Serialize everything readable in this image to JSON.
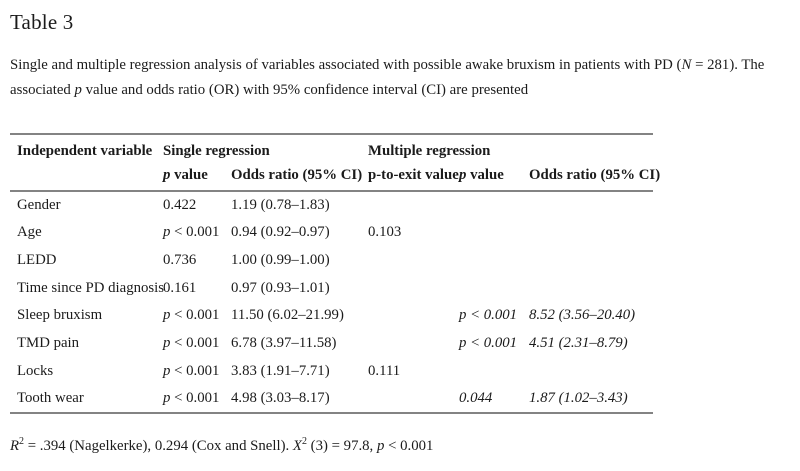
{
  "title": "Table 3",
  "caption": {
    "segments": [
      {
        "t": "Single and multiple regression analysis of variables associated with possible awake bruxism in patients with PD ("
      },
      {
        "t": "N",
        "i": true
      },
      {
        "t": " = 281). The associated "
      },
      {
        "t": "p",
        "i": true
      },
      {
        "t": " value and odds ratio (OR) with 95% confidence interval (CI) are presented"
      }
    ]
  },
  "table": {
    "header": {
      "col_independent": "Independent variable",
      "group_single": "Single regression",
      "group_multiple": "Multiple regression"
    },
    "subheader": [
      {
        "segments": [
          {
            "t": "p",
            "i": true
          },
          {
            "t": " value"
          }
        ]
      },
      {
        "segments": [
          {
            "t": "Odds ratio (95% CI)"
          }
        ]
      },
      {
        "segments": [
          {
            "t": "p-to-exit value"
          }
        ]
      },
      {
        "segments": [
          {
            "t": "p",
            "i": true
          },
          {
            "t": " value"
          }
        ]
      },
      {
        "segments": [
          {
            "t": "Odds ratio (95% CI)"
          }
        ]
      }
    ],
    "rows": [
      {
        "cells": [
          {
            "t": "Gender"
          },
          {
            "t": "0.422"
          },
          {
            "t": "1.19 (0.78–1.83)"
          },
          {
            "t": ""
          },
          {
            "t": ""
          },
          {
            "t": ""
          }
        ]
      },
      {
        "cells": [
          {
            "t": "Age"
          },
          {
            "t": "p < 0.001",
            "s": "pfirst"
          },
          {
            "t": "0.94 (0.92–0.97)"
          },
          {
            "t": "0.103"
          },
          {
            "t": ""
          },
          {
            "t": ""
          }
        ]
      },
      {
        "cells": [
          {
            "t": "LEDD"
          },
          {
            "t": "0.736"
          },
          {
            "t": "1.00 (0.99–1.00)"
          },
          {
            "t": ""
          },
          {
            "t": ""
          },
          {
            "t": ""
          }
        ]
      },
      {
        "cells": [
          {
            "t": "Time since PD diagnosis"
          },
          {
            "t": "0.161"
          },
          {
            "t": "0.97 (0.93–1.01)"
          },
          {
            "t": ""
          },
          {
            "t": ""
          },
          {
            "t": ""
          }
        ]
      },
      {
        "cells": [
          {
            "t": "Sleep bruxism"
          },
          {
            "t": "p < 0.001",
            "s": "pfirst"
          },
          {
            "t": "11.50 (6.02–21.99)"
          },
          {
            "t": ""
          },
          {
            "t": "p < 0.001",
            "s": "italic"
          },
          {
            "t": "8.52 (3.56–20.40)",
            "s": "italic"
          }
        ]
      },
      {
        "cells": [
          {
            "t": "TMD pain"
          },
          {
            "t": "p < 0.001",
            "s": "pfirst"
          },
          {
            "t": "6.78 (3.97–11.58)"
          },
          {
            "t": ""
          },
          {
            "t": "p < 0.001",
            "s": "italic"
          },
          {
            "t": "4.51 (2.31–8.79)",
            "s": "italic"
          }
        ]
      },
      {
        "cells": [
          {
            "t": "Locks"
          },
          {
            "t": "p < 0.001",
            "s": "pfirst"
          },
          {
            "t": "3.83 (1.91–7.71)"
          },
          {
            "t": "0.111"
          },
          {
            "t": ""
          },
          {
            "t": ""
          }
        ]
      },
      {
        "cells": [
          {
            "t": "Tooth wear"
          },
          {
            "t": "p < 0.001",
            "s": "pfirst"
          },
          {
            "t": "4.98 (3.03–8.17)"
          },
          {
            "t": ""
          },
          {
            "t": "0.044",
            "s": "italic"
          },
          {
            "t": "1.87 (1.02–3.43)",
            "s": "italic"
          }
        ]
      }
    ]
  },
  "footnote": {
    "segments": [
      {
        "t": "R",
        "i": true
      },
      {
        "t": "2",
        "sup": true
      },
      {
        "t": " = .394 (Nagelkerke), 0.294 (Cox and Snell). "
      },
      {
        "t": "X",
        "i": true
      },
      {
        "t": "2",
        "sup": true
      },
      {
        "t": " (3) = 97.8, "
      },
      {
        "t": "p",
        "i": true
      },
      {
        "t": " < 0.001"
      }
    ]
  },
  "colors": {
    "text": "#1b1b1b",
    "rule": "#838383",
    "background": "#ffffff"
  }
}
